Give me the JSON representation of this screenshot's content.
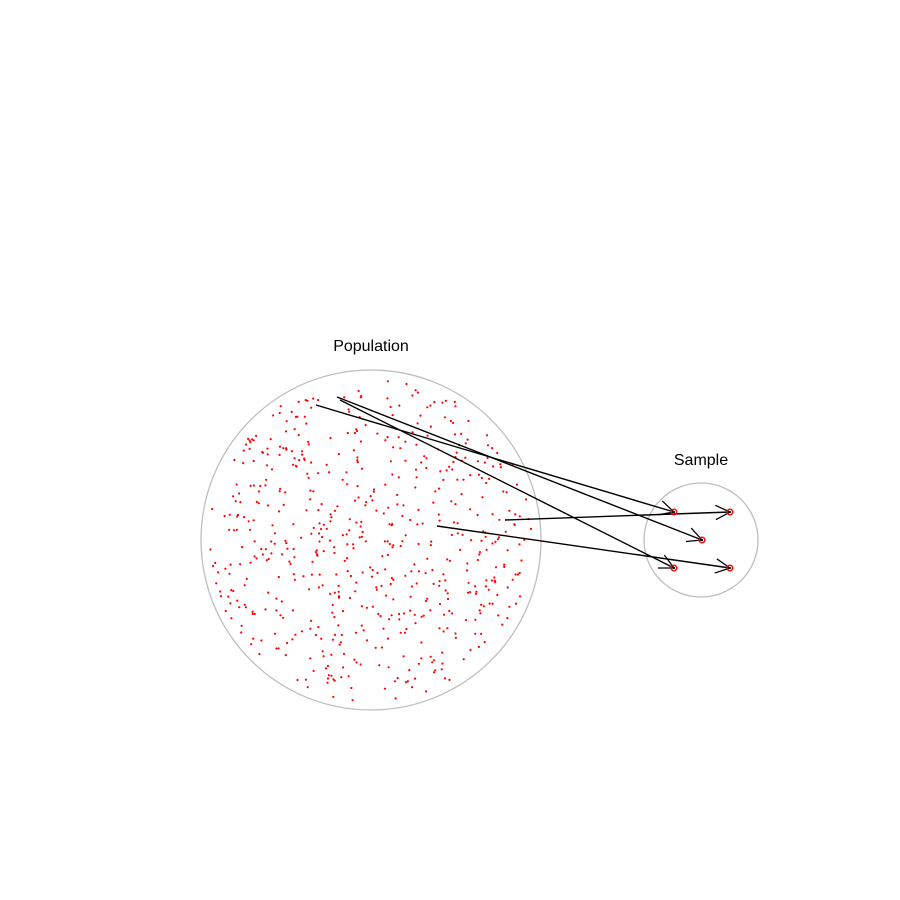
{
  "population": {
    "label": "Population",
    "point_count": 600
  },
  "sample": {
    "label": "Sample",
    "point_count": 5
  },
  "colors": {
    "points": "#ff0000",
    "circle": "#bebebe",
    "arrows": "#000000",
    "background": "#ffffff"
  },
  "arrows": [
    {
      "from": "population",
      "to": "sample"
    },
    {
      "from": "population",
      "to": "sample"
    },
    {
      "from": "population",
      "to": "sample"
    },
    {
      "from": "population",
      "to": "sample"
    },
    {
      "from": "population",
      "to": "sample"
    }
  ]
}
